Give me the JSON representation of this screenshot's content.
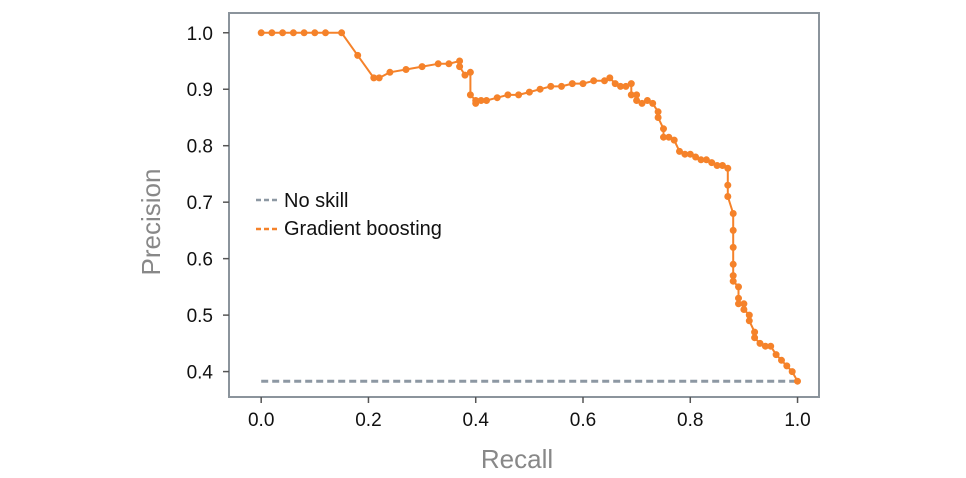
{
  "chart_data": {
    "type": "line",
    "title": "",
    "xlabel": "Recall",
    "ylabel": "Precision",
    "xlim": [
      -0.06,
      1.04
    ],
    "ylim": [
      0.355,
      1.035
    ],
    "xticks": [
      0.0,
      0.2,
      0.4,
      0.6,
      0.8,
      1.0
    ],
    "xtick_labels": [
      "0.0",
      "0.2",
      "0.4",
      "0.6",
      "0.8",
      "1.0"
    ],
    "yticks": [
      0.4,
      0.5,
      0.6,
      0.7,
      0.8,
      0.9,
      1.0
    ],
    "ytick_labels": [
      "0.4",
      "0.5",
      "0.6",
      "0.7",
      "0.8",
      "0.9",
      "1.0"
    ],
    "grid": false,
    "legend_position": "center-left",
    "series": [
      {
        "name": "No skill",
        "color": "#8d98a3",
        "style": "dashed",
        "markers": false,
        "x": [
          0.0,
          1.0
        ],
        "y": [
          0.383,
          0.383
        ]
      },
      {
        "name": "Gradient boosting",
        "color": "#f5822a",
        "style": "solid",
        "markers": true,
        "x": [
          0.0,
          0.02,
          0.04,
          0.06,
          0.08,
          0.1,
          0.12,
          0.15,
          0.18,
          0.21,
          0.22,
          0.24,
          0.27,
          0.3,
          0.33,
          0.35,
          0.37,
          0.37,
          0.38,
          0.39,
          0.39,
          0.4,
          0.4,
          0.41,
          0.42,
          0.44,
          0.46,
          0.48,
          0.5,
          0.52,
          0.54,
          0.56,
          0.58,
          0.6,
          0.62,
          0.64,
          0.65,
          0.66,
          0.67,
          0.68,
          0.69,
          0.69,
          0.7,
          0.7,
          0.71,
          0.72,
          0.73,
          0.74,
          0.74,
          0.75,
          0.75,
          0.76,
          0.77,
          0.78,
          0.79,
          0.8,
          0.81,
          0.82,
          0.83,
          0.84,
          0.85,
          0.86,
          0.87,
          0.87,
          0.87,
          0.88,
          0.88,
          0.88,
          0.88,
          0.88,
          0.88,
          0.89,
          0.89,
          0.89,
          0.9,
          0.9,
          0.91,
          0.91,
          0.92,
          0.92,
          0.93,
          0.94,
          0.95,
          0.96,
          0.97,
          0.98,
          0.99,
          1.0
        ],
        "y": [
          1.0,
          1.0,
          1.0,
          1.0,
          1.0,
          1.0,
          1.0,
          1.0,
          0.96,
          0.92,
          0.92,
          0.93,
          0.935,
          0.94,
          0.945,
          0.945,
          0.95,
          0.94,
          0.925,
          0.93,
          0.89,
          0.88,
          0.875,
          0.88,
          0.88,
          0.885,
          0.89,
          0.89,
          0.895,
          0.9,
          0.905,
          0.905,
          0.91,
          0.91,
          0.915,
          0.915,
          0.92,
          0.91,
          0.905,
          0.905,
          0.91,
          0.89,
          0.89,
          0.88,
          0.875,
          0.88,
          0.875,
          0.86,
          0.85,
          0.83,
          0.815,
          0.815,
          0.81,
          0.79,
          0.785,
          0.785,
          0.78,
          0.775,
          0.775,
          0.77,
          0.765,
          0.765,
          0.76,
          0.73,
          0.71,
          0.68,
          0.65,
          0.62,
          0.59,
          0.57,
          0.56,
          0.55,
          0.53,
          0.52,
          0.52,
          0.51,
          0.5,
          0.49,
          0.47,
          0.46,
          0.45,
          0.445,
          0.445,
          0.43,
          0.42,
          0.41,
          0.4,
          0.383
        ]
      }
    ]
  }
}
